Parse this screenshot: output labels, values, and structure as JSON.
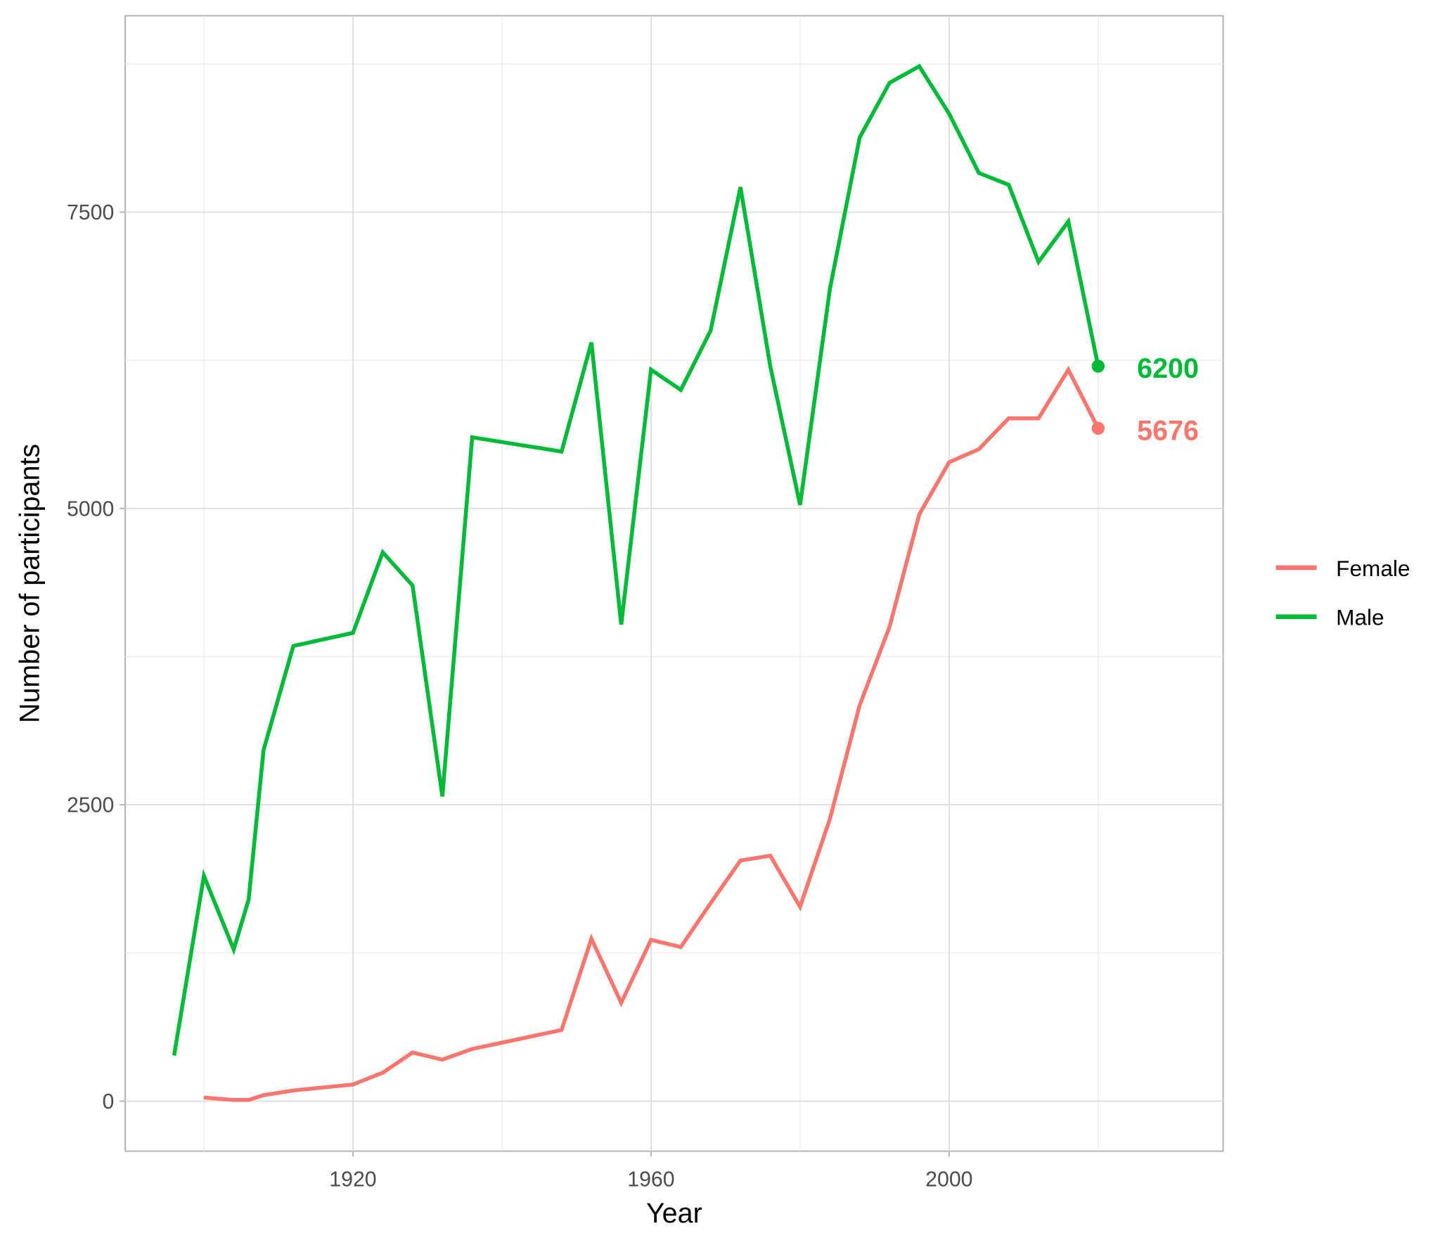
{
  "chart_data": {
    "type": "line",
    "title": "",
    "xlabel": "Year",
    "ylabel": "Number of participants",
    "xlim": [
      1890,
      2037
    ],
    "ylim": [
      -400,
      9400
    ],
    "x_ticks": [
      1920,
      1960,
      2000
    ],
    "y_ticks": [
      0,
      2500,
      5000,
      7500
    ],
    "grid": true,
    "legend_position": "right",
    "series": [
      {
        "name": "Female",
        "color": "#F8766D",
        "x": [
          1900,
          1904,
          1906,
          1908,
          1912,
          1920,
          1924,
          1928,
          1932,
          1936,
          1948,
          1952,
          1956,
          1960,
          1964,
          1968,
          1972,
          1976,
          1980,
          1984,
          1988,
          1992,
          1996,
          2000,
          2004,
          2008,
          2012,
          2016,
          2020
        ],
        "values": [
          30,
          10,
          10,
          50,
          90,
          140,
          240,
          410,
          350,
          440,
          600,
          1370,
          830,
          1360,
          1300,
          1670,
          2030,
          2070,
          1640,
          2380,
          3340,
          4000,
          4950,
          5390,
          5500,
          5760,
          5760,
          6170,
          5676
        ],
        "end_label": "5676"
      },
      {
        "name": "Male",
        "color": "#00BA38",
        "x": [
          1896,
          1900,
          1904,
          1906,
          1908,
          1912,
          1920,
          1924,
          1928,
          1932,
          1936,
          1948,
          1952,
          1956,
          1960,
          1964,
          1968,
          1972,
          1976,
          1980,
          1984,
          1988,
          1992,
          1996,
          2000,
          2004,
          2008,
          2012,
          2016,
          2020
        ],
        "values": [
          385,
          1900,
          1280,
          1700,
          2960,
          3840,
          3950,
          4630,
          4350,
          2570,
          5600,
          5480,
          6400,
          4020,
          6170,
          6000,
          6500,
          7710,
          6200,
          5030,
          6850,
          8130,
          8590,
          8730,
          8330,
          7830,
          7730,
          7080,
          7420,
          6200
        ],
        "end_label": "6200"
      }
    ]
  },
  "axes": {
    "x_title": "Year",
    "y_title": "Number of participants",
    "x_tick_labels": [
      "1920",
      "1960",
      "2000"
    ],
    "y_tick_labels": [
      "0",
      "2500",
      "5000",
      "7500"
    ]
  },
  "legend": {
    "items": [
      {
        "label": "Female",
        "color": "#F8766D"
      },
      {
        "label": "Male",
        "color": "#00BA38"
      }
    ]
  },
  "annotations": {
    "male_end": "6200",
    "female_end": "5676"
  }
}
